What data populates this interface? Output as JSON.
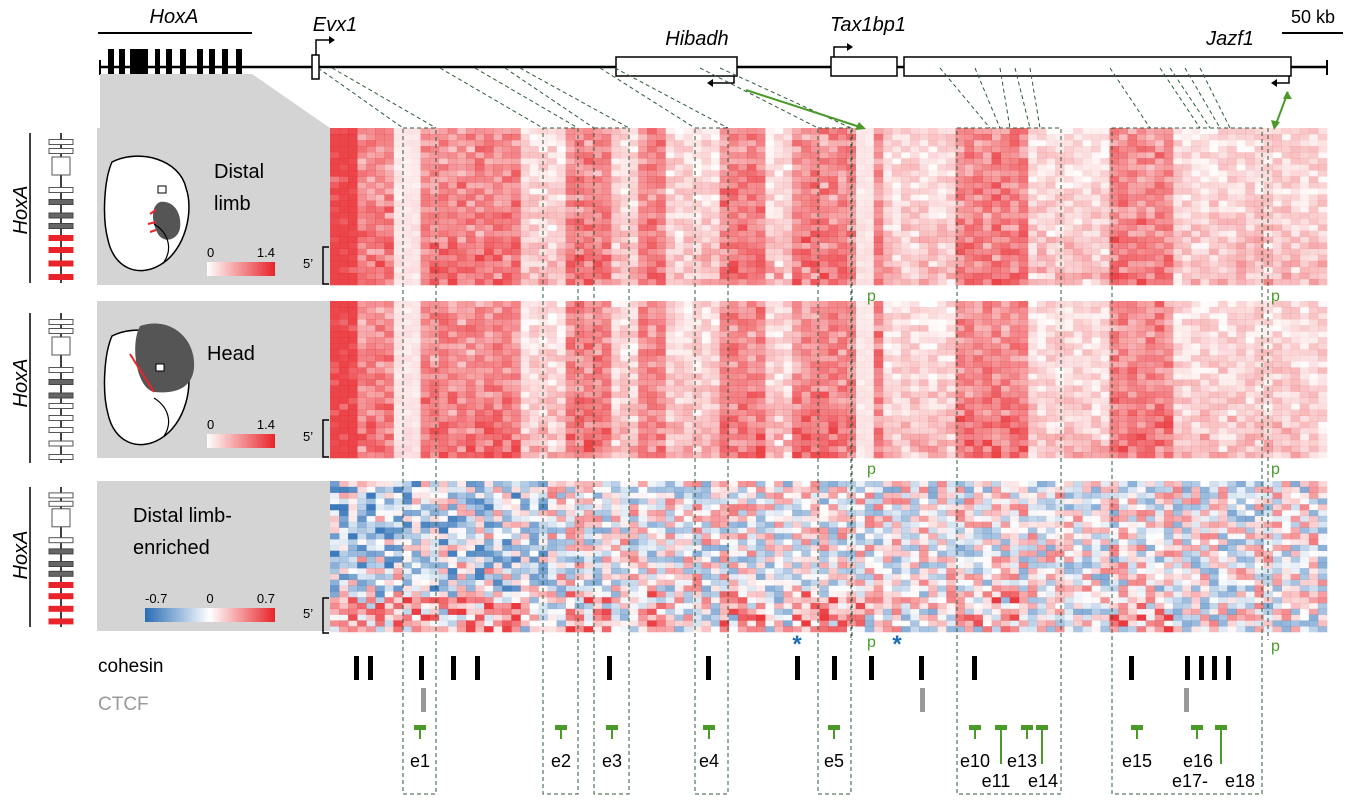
{
  "genes": {
    "hoxa": "HoxA",
    "evx1": "Evx1",
    "hibadh": "Hibadh",
    "tax1bp1": "Tax1bp1",
    "jazf1": "Jazf1"
  },
  "scale_bar": "50 kb",
  "panels": [
    {
      "side_label": "HoxA",
      "title_line1": "Distal",
      "title_line2": "limb",
      "scale_min": "0",
      "scale_max": "1.4",
      "five_prime": "5’",
      "p_label": "p"
    },
    {
      "side_label": "HoxA",
      "title_line1": "Head",
      "title_line2": "",
      "scale_min": "0",
      "scale_max": "1.4",
      "five_prime": "5’",
      "p_label": "p"
    },
    {
      "side_label": "HoxA",
      "title_line1": "Distal limb-",
      "title_line2": "enriched",
      "scale_min": "-0.7",
      "scale_mid": "0",
      "scale_max": "0.7",
      "five_prime": "5’",
      "p_label": "p"
    }
  ],
  "asterisk": "*",
  "tracks": {
    "cohesin": "cohesin",
    "ctcf": "CTCF"
  },
  "enhancers": [
    "e1",
    "e2",
    "e3",
    "e4",
    "e5",
    "e10",
    "e11",
    "e13",
    "e14",
    "e15",
    "e16",
    "e17-",
    "e18"
  ],
  "colors": {
    "red": "#e8242a",
    "blue": "#2a6db5",
    "green": "#4a9a2a",
    "dash": "#2f5a3a",
    "gray_panel": "#d4d4d4",
    "ctcf": "#999999"
  }
}
